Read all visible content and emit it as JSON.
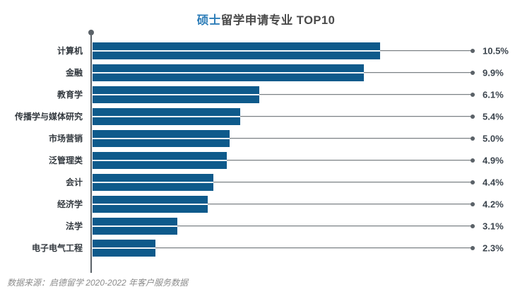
{
  "title": {
    "accent": "硕士",
    "rest": "留学申请专业 TOP10"
  },
  "source_note": "数据来源：启德留学 2020-2022 年客户服务数据",
  "colors": {
    "bar": "#0e5a8b",
    "title_accent": "#2d7db8",
    "title_text": "#4a4a4a",
    "label": "#33393f",
    "value": "#3c454e",
    "line": "#5b6268",
    "source": "#8b8b8b"
  },
  "chart_data": {
    "type": "bar",
    "orientation": "horizontal",
    "title": "硕士留学申请专业 TOP10",
    "categories": [
      "计算机",
      "金融",
      "教育学",
      "传播学与媒体研究",
      "市场营销",
      "泛管理类",
      "会计",
      "经济学",
      "法学",
      "电子电气工程"
    ],
    "values": [
      10.5,
      9.9,
      6.1,
      5.4,
      5.0,
      4.9,
      4.4,
      4.2,
      3.1,
      2.3
    ],
    "value_labels": [
      "10.5%",
      "9.9%",
      "6.1%",
      "5.4%",
      "5.0%",
      "4.9%",
      "4.4%",
      "4.2%",
      "3.1%",
      "2.3%"
    ],
    "unit": "%",
    "xlim": [
      0,
      11
    ],
    "grid": false,
    "legend": false,
    "source_note": "数据来源：启德留学 2020-2022 年客户服务数据"
  }
}
